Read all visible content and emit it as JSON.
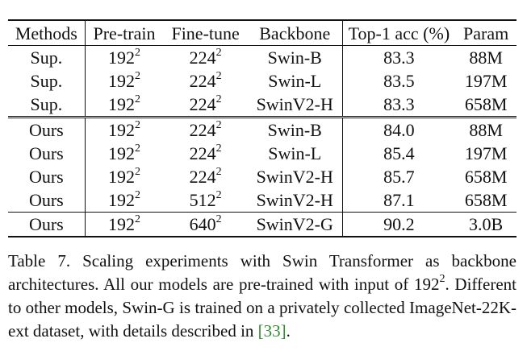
{
  "table": {
    "headers": {
      "methods": "Methods",
      "pretrain": "Pre-train",
      "finetune": "Fine-tune",
      "backbone": "Backbone",
      "top1": "Top-1 acc (%)",
      "param": "Param"
    },
    "superscript": "2",
    "rows": [
      {
        "method": "Sup.",
        "pretrain": "192",
        "finetune": "224",
        "backbone": "Swin-B",
        "top1": "83.3",
        "param": "88M"
      },
      {
        "method": "Sup.",
        "pretrain": "192",
        "finetune": "224",
        "backbone": "Swin-L",
        "top1": "83.5",
        "param": "197M"
      },
      {
        "method": "Sup.",
        "pretrain": "192",
        "finetune": "224",
        "backbone": "SwinV2-H",
        "top1": "83.3",
        "param": "658M"
      },
      {
        "method": "Ours",
        "pretrain": "192",
        "finetune": "224",
        "backbone": "Swin-B",
        "top1": "84.0",
        "param": "88M"
      },
      {
        "method": "Ours",
        "pretrain": "192",
        "finetune": "224",
        "backbone": "Swin-L",
        "top1": "85.4",
        "param": "197M"
      },
      {
        "method": "Ours",
        "pretrain": "192",
        "finetune": "224",
        "backbone": "SwinV2-H",
        "top1": "85.7",
        "param": "658M"
      },
      {
        "method": "Ours",
        "pretrain": "192",
        "finetune": "512",
        "backbone": "SwinV2-H",
        "top1": "87.1",
        "param": "658M"
      },
      {
        "method": "Ours",
        "pretrain": "192",
        "finetune": "640",
        "backbone": "SwinV2-G",
        "top1": "90.2",
        "param": "3.0B"
      }
    ]
  },
  "caption": {
    "text_before": "Table 7. Scaling experiments with Swin Transformer as backbone architectures.  All our models are pre-trained with input of 192",
    "superscript": "2",
    "text_middle": ". Different to other models, Swin-G is trained on a privately collected ImageNet-22K-ext dataset, with details described in ",
    "citation": "[33]",
    "text_after": "."
  },
  "colors": {
    "text": "#111111",
    "citation": "#2e8b2e"
  }
}
